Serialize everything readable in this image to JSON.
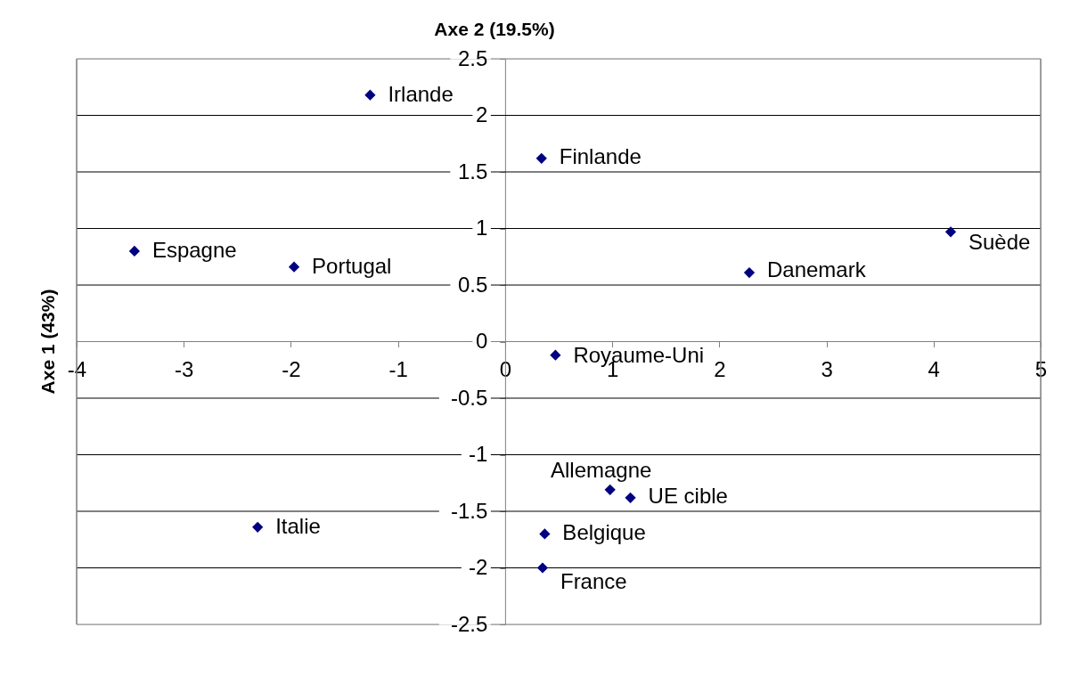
{
  "chart_data": {
    "type": "scatter",
    "title": "Axe 2 (19.5%)",
    "ylabel": "Axe 1 (43%)",
    "x": [
      -1.26,
      -3.46,
      -1.97,
      0.34,
      4.16,
      2.28,
      0.47,
      0.98,
      1.17,
      0.37,
      0.35,
      -2.31
    ],
    "series": [
      {
        "color": "#000080",
        "values": [
          2.18,
          0.8,
          0.66,
          1.62,
          0.97,
          0.61,
          -0.12,
          -1.31,
          -1.38,
          -1.7,
          -2.0,
          -1.64
        ]
      }
    ],
    "xlim": [
      -4,
      5
    ],
    "ylim": [
      -2.5,
      2.5
    ],
    "xticks": [
      -4,
      -3,
      -2,
      -1,
      0,
      1,
      2,
      3,
      4,
      5
    ],
    "yticks": [
      -2.5,
      -2,
      -1.5,
      -1,
      -0.5,
      0,
      0.5,
      1,
      1.5,
      2,
      2.5
    ],
    "grid": "y",
    "marker": "diamond",
    "annotations": [
      {
        "text": "Irlande",
        "x": -1.26,
        "y": 2.18
      },
      {
        "text": "Espagne",
        "x": -3.46,
        "y": 0.8
      },
      {
        "text": "Portugal",
        "x": -1.97,
        "y": 0.66
      },
      {
        "text": "Finlande",
        "x": 0.34,
        "y": 1.62
      },
      {
        "text": "Suède",
        "x": 4.16,
        "y": 0.97
      },
      {
        "text": "Danemark",
        "x": 2.28,
        "y": 0.61
      },
      {
        "text": "Royaume-Uni",
        "x": 0.47,
        "y": -0.12
      },
      {
        "text": "Allemagne",
        "x": 0.98,
        "y": -1.31
      },
      {
        "text": "UE cible",
        "x": 1.17,
        "y": -1.38
      },
      {
        "text": "Belgique",
        "x": 0.37,
        "y": -1.7
      },
      {
        "text": "France",
        "x": 0.35,
        "y": -2.0
      },
      {
        "text": "Italie",
        "x": -2.31,
        "y": -1.64
      }
    ]
  }
}
